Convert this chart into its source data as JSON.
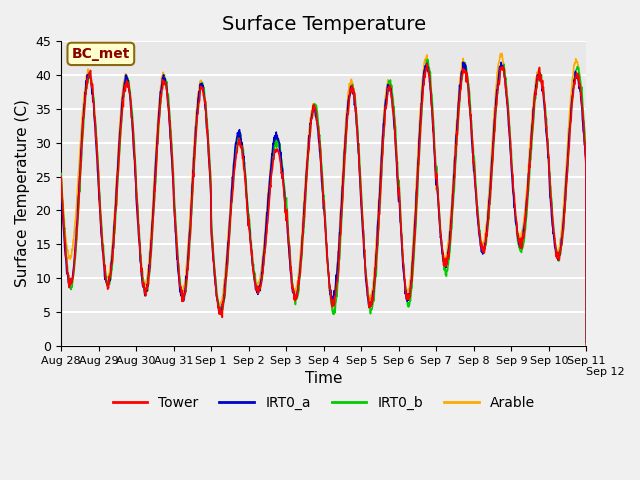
{
  "title": "Surface Temperature",
  "ylabel": "Surface Temperature (C)",
  "xlabel": "Time",
  "annotation": "BC_met",
  "ylim": [
    0,
    45
  ],
  "n_hours": 336,
  "x_tick_positions": [
    0,
    24,
    48,
    72,
    96,
    120,
    144,
    168,
    192,
    216,
    240,
    264,
    288,
    312,
    336
  ],
  "x_tick_labels": [
    "Aug 28",
    "Aug 29",
    "Aug 30",
    "Aug 31",
    "Sep 1",
    "Sep 2",
    "Sep 3",
    "Sep 4",
    "Sep 5",
    "Sep 6",
    "Sep 7",
    "Sep 8",
    "Sep 9",
    "Sep 10",
    "Sep 11"
  ],
  "x_tick_extra_label": "Sep 12",
  "series_colors": {
    "Tower": "#ff0000",
    "IRT0_a": "#0000cc",
    "IRT0_b": "#00cc00",
    "Arable": "#ffaa00"
  },
  "plot_bg_color": "#e8e8e8",
  "fig_bg_color": "#f0f0f0",
  "grid_color": "#ffffff",
  "title_fontsize": 14,
  "label_fontsize": 11,
  "tick_fontsize": 8,
  "yticks": [
    0,
    5,
    10,
    15,
    20,
    25,
    30,
    35,
    40,
    45
  ],
  "day_maxes_tower": [
    40,
    39,
    39,
    38,
    30,
    29,
    35,
    38,
    38,
    41,
    41,
    41,
    40,
    40
  ],
  "day_mins_tower": [
    9,
    9,
    8,
    7,
    5,
    8,
    7,
    6,
    6,
    7,
    12,
    14,
    15,
    13
  ],
  "day_maxes_irt0a": [
    40,
    39.5,
    39.5,
    38.5,
    31.5,
    31,
    35,
    38,
    38.5,
    41.5,
    41.5,
    41.5,
    40,
    40
  ],
  "day_mins_irt0a": [
    9,
    9,
    8,
    7,
    5,
    8,
    7,
    7,
    6,
    7,
    12,
    14,
    15,
    13
  ],
  "day_maxes_irt0b": [
    40,
    39.5,
    39.5,
    38.5,
    31,
    30.5,
    35.5,
    38.5,
    39,
    42,
    41.5,
    41.5,
    40,
    41
  ],
  "day_mins_irt0b": [
    9,
    9,
    8,
    7,
    5,
    8,
    7,
    5,
    5,
    6,
    11,
    14,
    14,
    13
  ],
  "day_maxes_arable": [
    40.5,
    40,
    40,
    39,
    31,
    31,
    35.5,
    39,
    39,
    42.5,
    42,
    43,
    40.5,
    42
  ],
  "day_mins_arable": [
    13,
    10,
    9,
    8,
    6,
    9,
    8,
    7,
    7,
    8,
    13,
    15,
    16,
    14
  ]
}
